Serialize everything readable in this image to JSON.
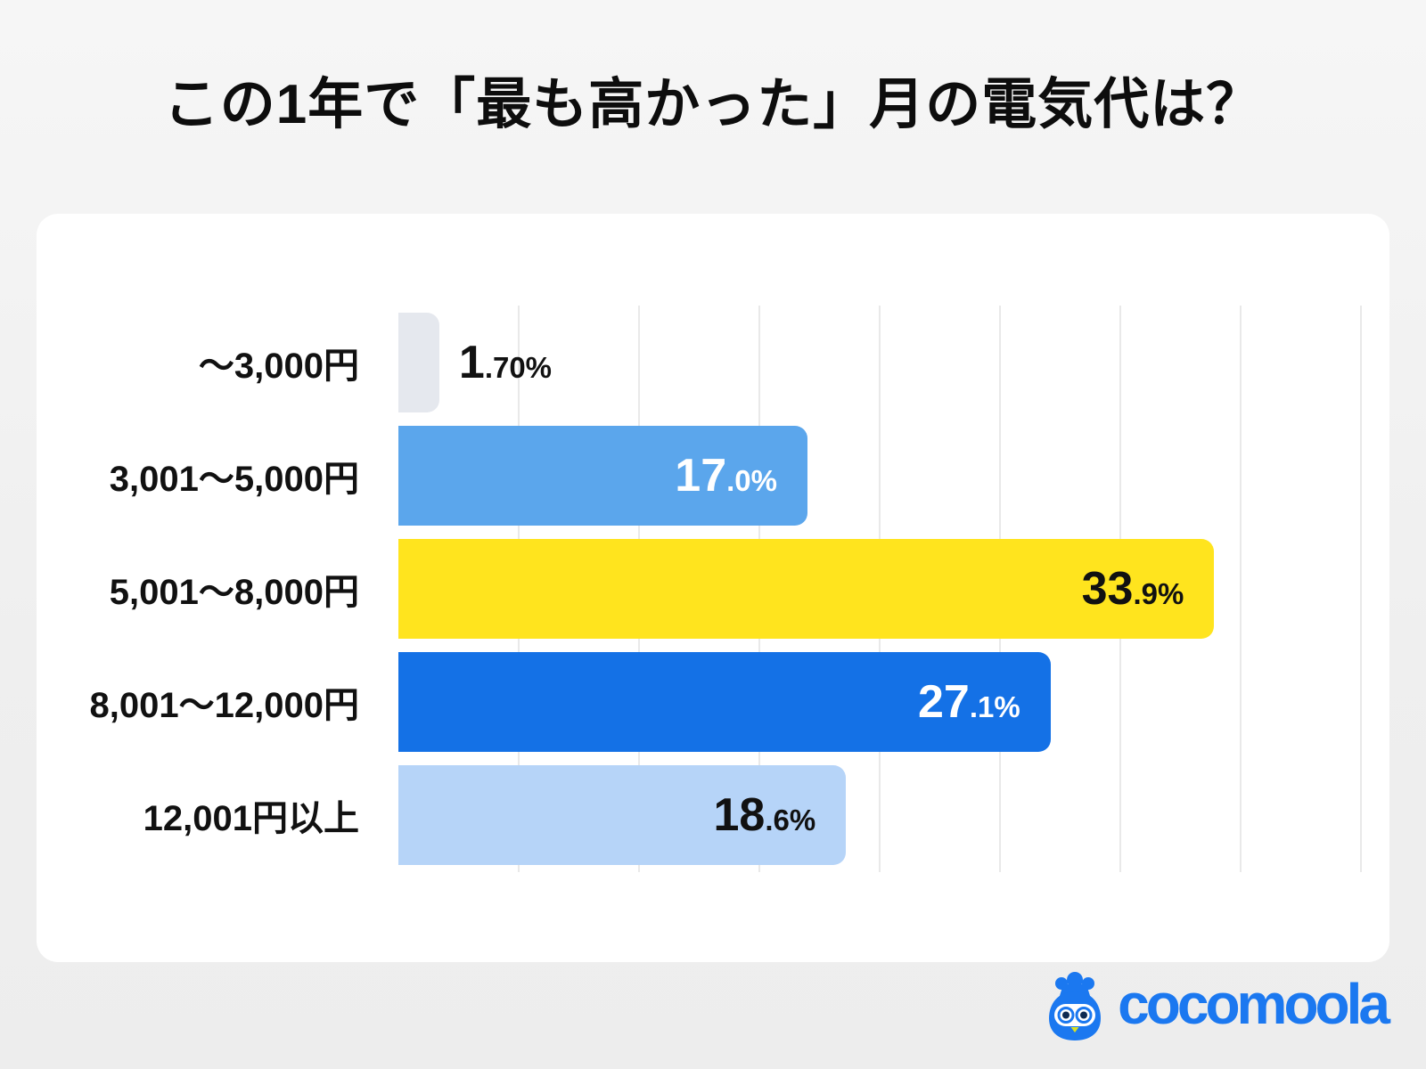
{
  "page": {
    "title": "この1年で「最も高かった」月の電気代は？"
  },
  "chart_data": {
    "type": "bar",
    "orientation": "horizontal",
    "title": "この1年で「最も高かった」月の電気代は？",
    "categories": [
      "～3,000円",
      "3,001～5,000円",
      "5,001～8,000円",
      "8,001～12,000円",
      "12,001円以上"
    ],
    "values": [
      1.7,
      17.0,
      33.9,
      27.1,
      18.6
    ],
    "value_labels": [
      {
        "big": "1",
        "small": ".70%"
      },
      {
        "big": "17",
        "small": ".0%"
      },
      {
        "big": "33",
        "small": ".9%"
      },
      {
        "big": "27",
        "small": ".1%"
      },
      {
        "big": "18",
        "small": ".6%"
      }
    ],
    "bar_colors": [
      "#E5E8EE",
      "#5BA6EC",
      "#FFE41E",
      "#1471E6",
      "#B6D4F8"
    ],
    "value_label_colors": [
      "#111111",
      "#FFFFFF",
      "#111111",
      "#FFFFFF",
      "#111111"
    ],
    "value_label_inside": [
      false,
      true,
      true,
      true,
      true
    ],
    "xlim": [
      0,
      40
    ],
    "grid_interval": 5,
    "grid": true,
    "grid_color": "#E9E9E9",
    "legend": false,
    "plot_background": "#FFFFFF",
    "xlabel": "",
    "ylabel": ""
  },
  "logo": {
    "brand": "cocomoola",
    "color": "#1B78F0",
    "mascot": "owl-moneybag-mascot",
    "mascot_face_color": "#FFFFFF",
    "mascot_beak_color": "#D9E021"
  }
}
